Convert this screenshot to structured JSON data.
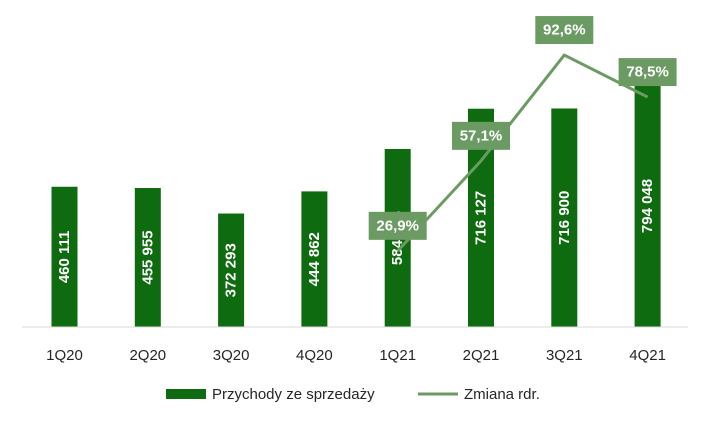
{
  "chart_data": {
    "type": "bar",
    "categories": [
      "1Q20",
      "2Q20",
      "3Q20",
      "4Q20",
      "1Q21",
      "2Q21",
      "3Q21",
      "4Q21"
    ],
    "series": [
      {
        "name": "Przychody ze sprzedaży",
        "type": "bar",
        "values": [
          460111,
          455955,
          372293,
          444862,
          584076,
          716127,
          716900,
          794048
        ],
        "labels": [
          "460 111",
          "455 955",
          "372 293",
          "444 862",
          "584 076",
          "716 127",
          "716 900",
          "794 048"
        ],
        "color": "#0f6b0f"
      },
      {
        "name": "Zmiana rdr.",
        "type": "line",
        "values": [
          null,
          null,
          null,
          null,
          26.9,
          57.1,
          92.6,
          78.5
        ],
        "labels": [
          null,
          null,
          null,
          null,
          "26,9%",
          "57,1%",
          "92,6%",
          "78,5%"
        ],
        "color": "#6b9b63"
      }
    ],
    "legend_position": "bottom",
    "grid": false
  }
}
